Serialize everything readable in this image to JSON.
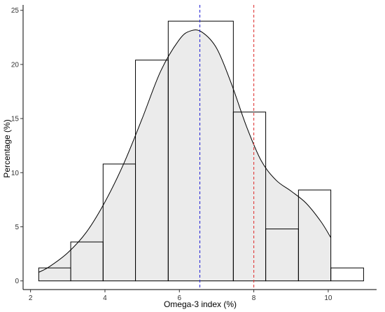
{
  "chart_data": {
    "type": "bar",
    "subtype": "histogram-with-density",
    "xlabel": "Omega-3 index (%)",
    "ylabel": "Percentage (%)",
    "xlim": [
      1.8,
      11.3
    ],
    "ylim": [
      -0.8,
      25.5
    ],
    "x_ticks": [
      2,
      4,
      6,
      8,
      10
    ],
    "x_tick_labels": [
      "2",
      "4",
      "6",
      "8",
      "10"
    ],
    "y_ticks": [
      0,
      5,
      10,
      15,
      20,
      25
    ],
    "y_tick_labels": [
      "0",
      "5",
      "10",
      "15",
      "20",
      "25"
    ],
    "bins": [
      {
        "x0": 2.22,
        "x1": 3.08,
        "value": 1.2
      },
      {
        "x0": 3.08,
        "x1": 3.95,
        "value": 3.6
      },
      {
        "x0": 3.95,
        "x1": 4.82,
        "value": 10.8
      },
      {
        "x0": 4.82,
        "x1": 5.7,
        "value": 20.4
      },
      {
        "x0": 5.7,
        "x1": 7.45,
        "value": 24.0
      },
      {
        "x0": 7.45,
        "x1": 8.32,
        "value": 15.6
      },
      {
        "x0": 8.32,
        "x1": 9.2,
        "value": 4.8
      },
      {
        "x0": 9.2,
        "x1": 10.07,
        "value": 8.4
      },
      {
        "x0": 10.07,
        "x1": 10.95,
        "value": 1.2
      }
    ],
    "density": {
      "x": [
        2.22,
        2.5,
        3.0,
        3.5,
        4.0,
        4.5,
        5.0,
        5.5,
        6.0,
        6.3,
        6.6,
        7.0,
        7.4,
        7.8,
        8.2,
        8.6,
        9.0,
        9.4,
        9.8,
        10.07
      ],
      "y": [
        0.8,
        1.3,
        2.6,
        4.5,
        7.3,
        10.8,
        15.0,
        19.4,
        22.3,
        23.1,
        23.0,
        21.5,
        18.2,
        14.3,
        11.1,
        9.3,
        8.3,
        7.2,
        5.5,
        4.0
      ]
    },
    "reference_lines": [
      {
        "x": 6.55,
        "color": "#2b2bd6",
        "style": "dashed"
      },
      {
        "x": 8.0,
        "color": "#e03a3a",
        "style": "dashed"
      }
    ],
    "colors": {
      "bar_stroke": "#000000",
      "density_fill": "#ebebeb",
      "density_stroke": "#000000",
      "axis": "#000000"
    },
    "grid": false,
    "legend": "none"
  }
}
